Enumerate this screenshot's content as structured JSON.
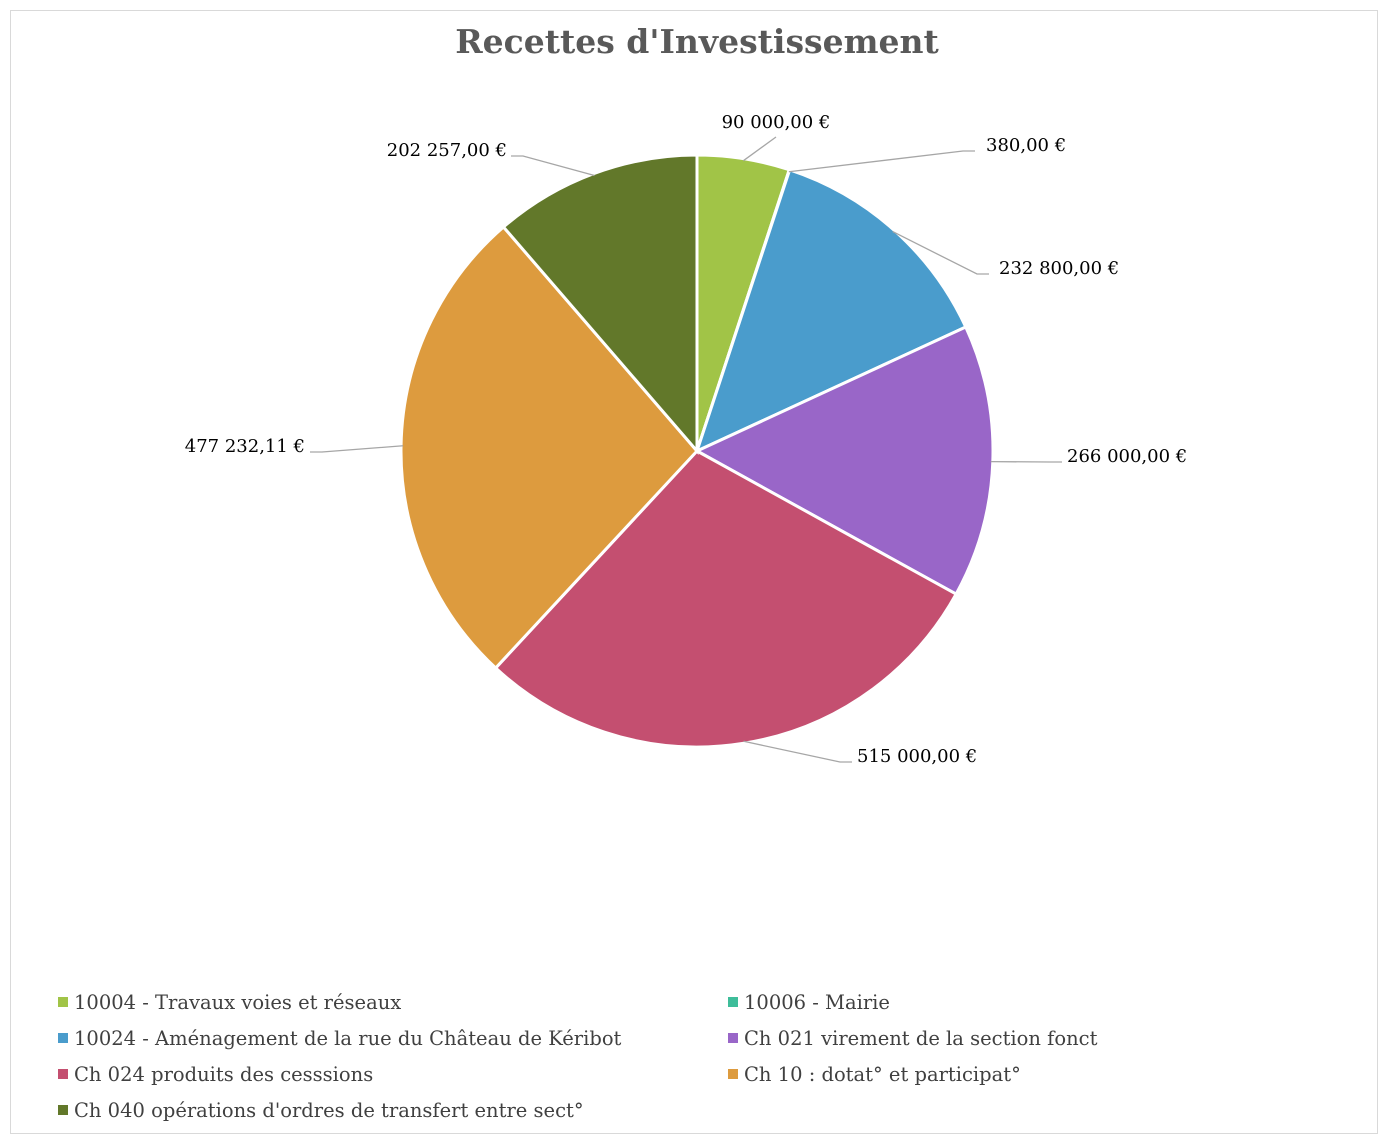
{
  "chart_data": {
    "type": "pie",
    "title": "Recettes d'Investissement",
    "legend_position": "bottom",
    "series": [
      {
        "values": [
          90000.0,
          380.0,
          232800.0,
          266000.0,
          515000.0,
          477232.11,
          202257.0
        ],
        "labels": [
          "90 000,00 €",
          "380,00 €",
          "232 800,00 €",
          "266 000,00 €",
          "515 000,00 €",
          "477 232,11 €",
          "202 257,00 €"
        ]
      }
    ],
    "categories": [
      "10004 - Travaux voies et réseaux",
      "10006 - Mairie",
      "10024 - Aménagement de la rue du Château de Kéribot",
      "Ch 021 virement de la section fonct",
      "Ch 024 produits des cesssions",
      "Ch 10 : dotat° et participat°",
      "Ch 040 opérations d'ordres de transfert entre sect°"
    ],
    "colors": [
      "#a1c447",
      "#3ebd9a",
      "#4a9ccc",
      "#9966c8",
      "#c44f70",
      "#dd9b3e",
      "#62782a"
    ]
  }
}
